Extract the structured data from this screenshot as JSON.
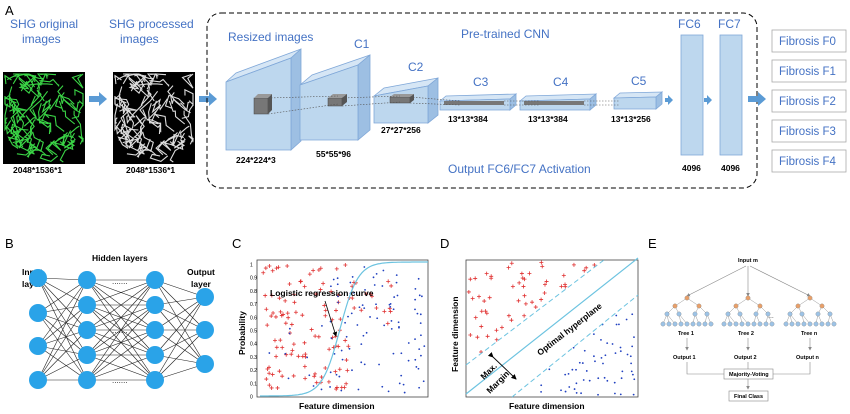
{
  "panels": {
    "A": "A",
    "B": "B",
    "C": "C",
    "D": "D",
    "E": "E"
  },
  "panel_a": {
    "input_title": [
      "SHG original",
      "images"
    ],
    "processed_title": [
      "SHG processed",
      "images"
    ],
    "input_dim": "2048*1536*1",
    "processed_dim": "2048*1536*1",
    "cnn_title": "Pre-trained CNN",
    "resized_title": "Resized images",
    "layers": [
      {
        "name": "",
        "dim": "224*224*3"
      },
      {
        "name": "C1",
        "dim": "55*55*96"
      },
      {
        "name": "C2",
        "dim": "27*27*256"
      },
      {
        "name": "C3",
        "dim": "13*13*384"
      },
      {
        "name": "C4",
        "dim": "13*13*384"
      },
      {
        "name": "C5",
        "dim": "13*13*256"
      }
    ],
    "fc": [
      {
        "name": "FC6",
        "dim": "4096"
      },
      {
        "name": "FC7",
        "dim": "4096"
      }
    ],
    "output_caption": "Output FC6/FC7 Activation",
    "classes": [
      "Fibrosis F0",
      "Fibrosis F1",
      "Fibrosis F2",
      "Fibrosis F3",
      "Fibrosis F4"
    ],
    "colors": {
      "accent": "#4472c4",
      "box_fill": "#bdd7ee",
      "box_stroke": "#7fa7d8",
      "arrow": "#5b9bd5"
    }
  },
  "panel_b": {
    "input_label": [
      "Input",
      "layer"
    ],
    "hidden_label": "Hidden layers",
    "output_label": [
      "Output",
      "layer"
    ],
    "node_color": "#2aa3e8"
  },
  "panel_c": {
    "annotation": "Logistic regression curve",
    "ylabel": "Probability",
    "xlabel": "Feature dimension",
    "yticks": [
      "0",
      "0.1",
      "0.2",
      "0.3",
      "0.4",
      "0.5",
      "0.6",
      "0.7",
      "0.8",
      "0.9",
      "1"
    ]
  },
  "panel_d": {
    "hyperplane_label": "Optimal hyperplane",
    "margin_label": [
      "Max.",
      "Margin"
    ],
    "ylabel": "Feature dimension",
    "xlabel": "Feature dimension"
  },
  "panel_e": {
    "input": "Input m",
    "trees": [
      {
        "name": "Tree 1",
        "output": "Output 1"
      },
      {
        "name": "Tree 2",
        "output": "Output 2"
      },
      {
        "name": "Tree n",
        "output": "Output n"
      }
    ],
    "voting": "Majority-Voting",
    "final": "Final Class",
    "colors": {
      "root": "#e8a06a",
      "leaf": "#9dc3e6"
    }
  }
}
